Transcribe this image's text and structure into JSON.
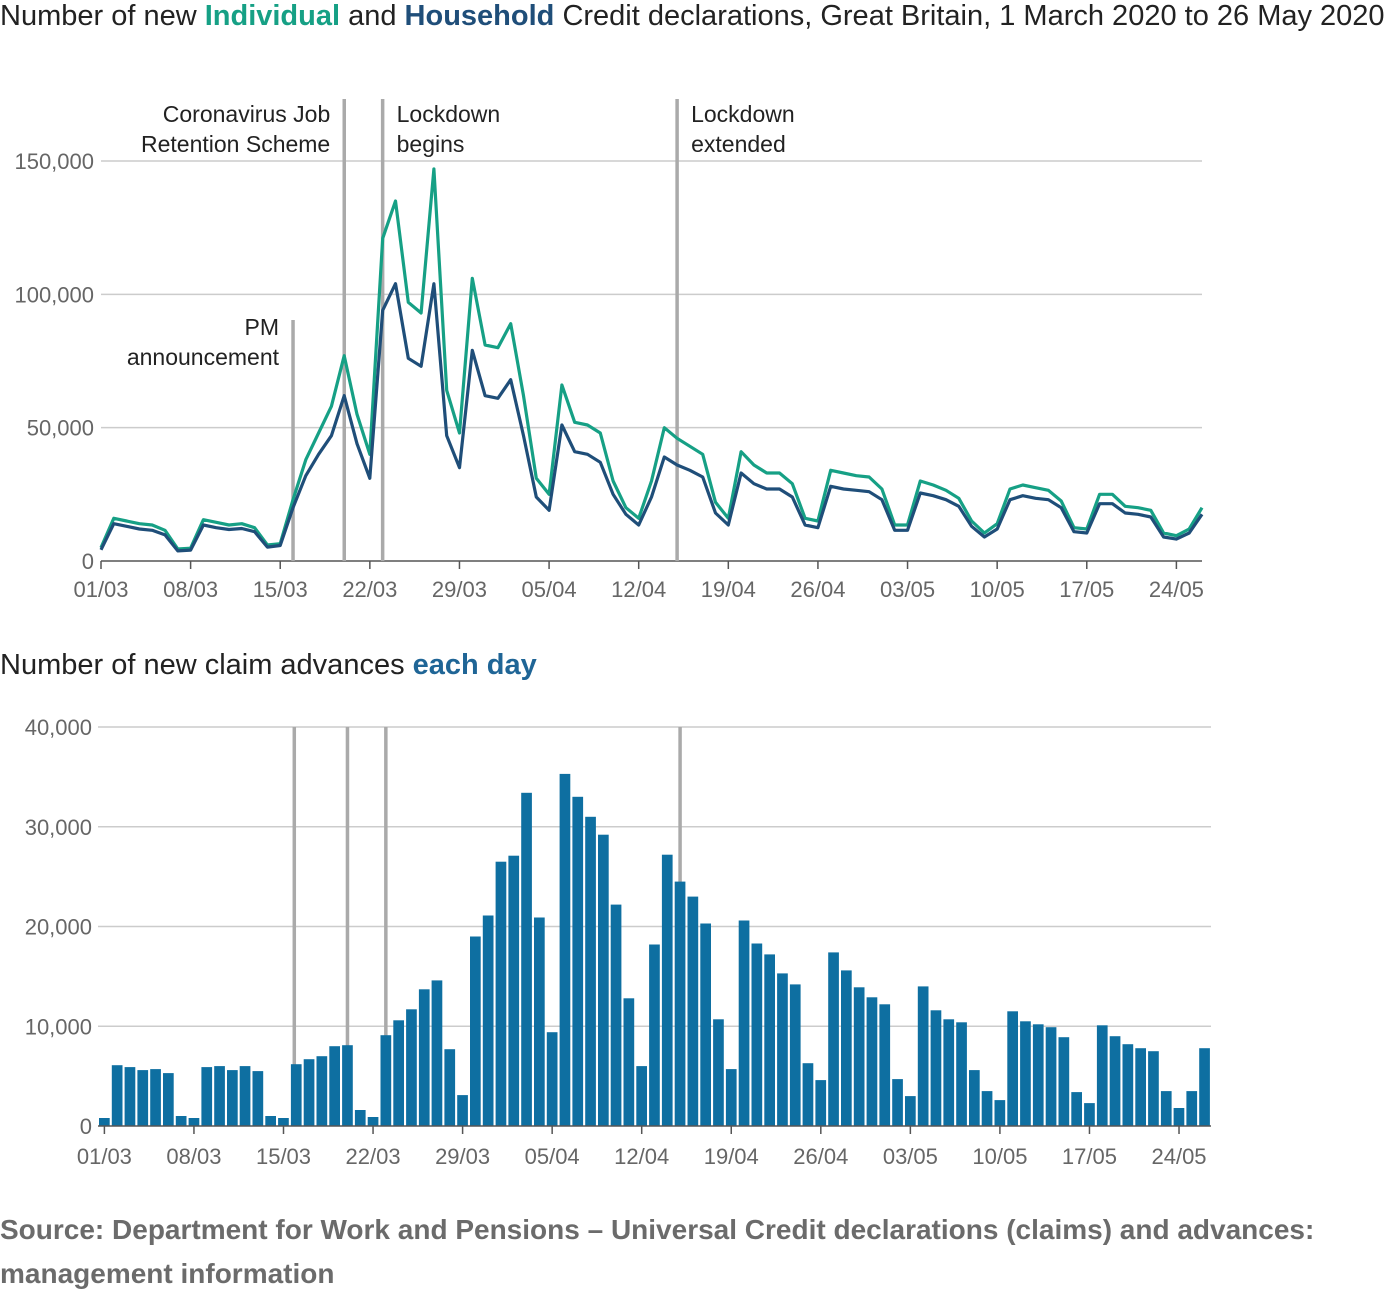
{
  "title1": {
    "prefix": "Number of new ",
    "individual": "Individual",
    "and": " and ",
    "household": "Household",
    "suffix": " Credit declarations, Great Britain, 1 March 2020 to 26 May 2020"
  },
  "title2": {
    "prefix": "Number of new claim advances ",
    "highlight": "each day"
  },
  "source": "Source: Department for Work and Pensions – Universal Credit declarations (claims) and advances: management information",
  "colors": {
    "individual": "#16a085",
    "household": "#1f4e79",
    "bars": "#0e6fa1",
    "events": "#aaaaaa",
    "grid": "#cccccc"
  },
  "chart_data": [
    {
      "type": "line",
      "title": "Number of new Individual and Household Credit declarations, Great Britain, 1 March 2020 to 26 May 2020",
      "xlabel": "",
      "ylabel": "",
      "x_start": "01/03",
      "x_ticks": [
        "01/03",
        "08/03",
        "15/03",
        "22/03",
        "29/03",
        "05/04",
        "12/04",
        "19/04",
        "26/04",
        "03/05",
        "10/05",
        "17/05",
        "24/05"
      ],
      "y_ticks": [
        "0",
        "50,000",
        "100,000",
        "150,000"
      ],
      "ylim": [
        0,
        150000
      ],
      "grid": true,
      "events": [
        {
          "label": [
            "PM",
            "announcement"
          ],
          "day": 15,
          "label_side": "left",
          "level": "low"
        },
        {
          "label": [
            "Coronavirus Job",
            "Retention Scheme"
          ],
          "day": 19,
          "label_side": "left",
          "level": "high"
        },
        {
          "label": [
            "Lockdown",
            "begins"
          ],
          "day": 22,
          "label_side": "right",
          "level": "high"
        },
        {
          "label": [
            "Lockdown",
            "extended"
          ],
          "day": 45,
          "label_side": "right",
          "level": "high"
        }
      ],
      "series": [
        {
          "name": "Individual",
          "values": [
            5000,
            16000,
            15000,
            14000,
            13500,
            11500,
            4500,
            4800,
            15500,
            14500,
            13500,
            14000,
            12500,
            6000,
            6500,
            23000,
            38000,
            48000,
            58000,
            77000,
            55000,
            40000,
            121000,
            135000,
            97000,
            93000,
            147000,
            64000,
            48000,
            106000,
            81000,
            80000,
            89000,
            62000,
            31000,
            25000,
            66000,
            52000,
            51000,
            48000,
            30000,
            20000,
            16000,
            30000,
            50000,
            46000,
            43000,
            40000,
            22000,
            16000,
            41000,
            36000,
            33000,
            33000,
            29000,
            16000,
            15000,
            34000,
            33000,
            32000,
            31500,
            27000,
            13500,
            13500,
            30000,
            28500,
            26500,
            23500,
            15000,
            10500,
            14000,
            27000,
            28500,
            27500,
            26500,
            22500,
            12500,
            12000,
            25000,
            25000,
            20500,
            20000,
            19000,
            10500,
            9500,
            12000,
            20000
          ]
        },
        {
          "name": "Household",
          "values": [
            4200,
            14000,
            13000,
            12000,
            11500,
            9800,
            3800,
            4100,
            13500,
            12500,
            11800,
            12200,
            11000,
            5200,
            5800,
            20000,
            32000,
            40000,
            47000,
            62000,
            44000,
            31000,
            94000,
            104000,
            76000,
            73000,
            104000,
            47000,
            35000,
            79000,
            62000,
            61000,
            68000,
            47000,
            24000,
            19000,
            51000,
            41000,
            40000,
            37000,
            25000,
            17500,
            13500,
            24000,
            39000,
            36000,
            34000,
            31500,
            18000,
            13500,
            33000,
            29000,
            27000,
            27000,
            24000,
            13500,
            12500,
            28000,
            27000,
            26500,
            26000,
            23000,
            11500,
            11500,
            25500,
            24500,
            23000,
            20500,
            13000,
            9000,
            12000,
            23000,
            24500,
            23500,
            23000,
            20000,
            11000,
            10500,
            21500,
            21500,
            18000,
            17500,
            16500,
            9000,
            8200,
            10500,
            17500
          ]
        }
      ]
    },
    {
      "type": "bar",
      "title": "Number of new claim advances each day",
      "xlabel": "",
      "ylabel": "",
      "x_start": "01/03",
      "x_ticks": [
        "01/03",
        "08/03",
        "15/03",
        "22/03",
        "29/03",
        "05/04",
        "12/04",
        "19/04",
        "26/04",
        "03/05",
        "10/05",
        "17/05",
        "24/05"
      ],
      "y_ticks": [
        "0",
        "10,000",
        "20,000",
        "30,000",
        "40,000"
      ],
      "ylim": [
        0,
        40000
      ],
      "grid": true,
      "event_days": [
        15,
        19,
        22,
        45
      ],
      "series": [
        {
          "name": "Claim advances",
          "values": [
            800,
            6100,
            5900,
            5600,
            5700,
            5300,
            1000,
            800,
            5900,
            6000,
            5600,
            6000,
            5500,
            1000,
            800,
            6200,
            6700,
            7000,
            8000,
            8100,
            1600,
            900,
            9100,
            10600,
            11700,
            13700,
            14600,
            7700,
            3100,
            19000,
            21100,
            26500,
            27100,
            33400,
            20900,
            9400,
            35300,
            33000,
            31000,
            29200,
            22200,
            12800,
            6000,
            18200,
            27200,
            24500,
            23000,
            20300,
            10700,
            5700,
            20600,
            18300,
            17200,
            15300,
            14200,
            6300,
            4600,
            17400,
            15600,
            13900,
            12900,
            12200,
            4700,
            3000,
            14000,
            11600,
            10700,
            10400,
            5600,
            3500,
            2600,
            11500,
            10500,
            10200,
            9900,
            8900,
            3400,
            2300,
            10100,
            9000,
            8200,
            7800,
            7500,
            3500,
            1800,
            3500,
            7800
          ]
        }
      ]
    }
  ]
}
